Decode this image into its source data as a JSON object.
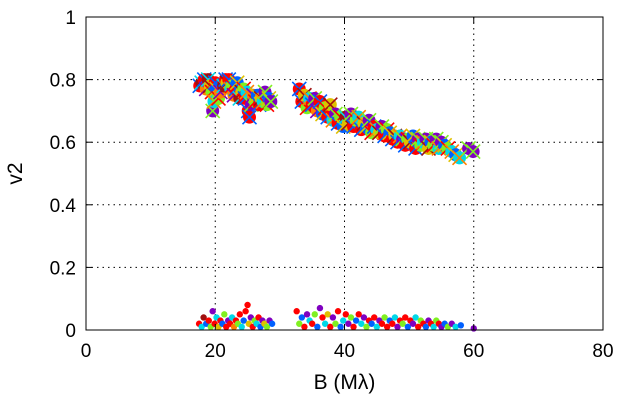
{
  "chart_data": {
    "type": "scatter",
    "title": "",
    "xlabel": "B (Mλ)",
    "ylabel": "v2",
    "xlim": [
      0,
      80
    ],
    "ylim": [
      0,
      1
    ],
    "xticks": [
      0,
      20,
      40,
      60,
      80
    ],
    "yticks": [
      0,
      0.2,
      0.4,
      0.6,
      0.8,
      1
    ],
    "grid": "dotted",
    "legend": "none",
    "colors": [
      "#8000c0",
      "#0060ff",
      "#00d8e8",
      "#80f020",
      "#e0c000",
      "#ff8000",
      "#ff0000",
      "#a01010"
    ],
    "series": [
      {
        "marker": "circle-with-x",
        "points": [
          [
            17.6,
            0.78,
            6
          ],
          [
            17.9,
            0.79,
            7
          ],
          [
            18.3,
            0.8,
            6
          ],
          [
            18.6,
            0.77,
            5
          ],
          [
            18.9,
            0.8,
            7
          ],
          [
            19.2,
            0.78,
            4
          ],
          [
            19.5,
            0.76,
            3
          ],
          [
            19.6,
            0.7,
            0
          ],
          [
            19.8,
            0.73,
            2
          ],
          [
            20.0,
            0.79,
            6
          ],
          [
            20.2,
            0.77,
            1
          ],
          [
            20.5,
            0.74,
            3
          ],
          [
            20.8,
            0.76,
            5
          ],
          [
            21.3,
            0.78,
            7
          ],
          [
            21.6,
            0.8,
            6
          ],
          [
            21.8,
            0.79,
            4
          ],
          [
            22.1,
            0.8,
            6
          ],
          [
            22.4,
            0.77,
            2
          ],
          [
            22.6,
            0.78,
            3
          ],
          [
            22.9,
            0.75,
            5
          ],
          [
            23.2,
            0.77,
            6
          ],
          [
            23.4,
            0.79,
            1
          ],
          [
            23.8,
            0.74,
            7
          ],
          [
            24.1,
            0.76,
            4
          ],
          [
            24.4,
            0.77,
            3
          ],
          [
            24.6,
            0.74,
            6
          ],
          [
            24.9,
            0.76,
            2
          ],
          [
            25.1,
            0.7,
            6
          ],
          [
            25.3,
            0.68,
            6
          ],
          [
            25.6,
            0.72,
            0
          ],
          [
            25.9,
            0.75,
            5
          ],
          [
            26.2,
            0.73,
            3
          ],
          [
            26.5,
            0.75,
            1
          ],
          [
            26.8,
            0.72,
            6
          ],
          [
            27.1,
            0.74,
            4
          ],
          [
            27.4,
            0.73,
            2
          ],
          [
            27.7,
            0.76,
            0
          ],
          [
            28.0,
            0.72,
            3
          ],
          [
            28.3,
            0.74,
            1
          ],
          [
            28.6,
            0.73,
            0
          ],
          [
            33.0,
            0.77,
            6
          ],
          [
            33.4,
            0.73,
            6
          ],
          [
            33.8,
            0.75,
            4
          ],
          [
            34.2,
            0.71,
            3
          ],
          [
            34.6,
            0.74,
            2
          ],
          [
            35.0,
            0.72,
            6
          ],
          [
            35.4,
            0.74,
            0
          ],
          [
            35.8,
            0.7,
            5
          ],
          [
            36.2,
            0.73,
            6
          ],
          [
            36.6,
            0.69,
            1
          ],
          [
            37.0,
            0.71,
            3
          ],
          [
            37.4,
            0.68,
            6
          ],
          [
            37.8,
            0.72,
            4
          ],
          [
            38.2,
            0.67,
            2
          ],
          [
            38.6,
            0.69,
            0
          ],
          [
            39.0,
            0.66,
            6
          ],
          [
            39.4,
            0.68,
            3
          ],
          [
            39.8,
            0.65,
            1
          ],
          [
            40.2,
            0.68,
            7
          ],
          [
            40.6,
            0.66,
            4
          ],
          [
            41.0,
            0.69,
            0
          ],
          [
            41.4,
            0.65,
            6
          ],
          [
            41.8,
            0.67,
            3
          ],
          [
            42.2,
            0.68,
            2
          ],
          [
            42.6,
            0.64,
            6
          ],
          [
            43.0,
            0.66,
            4
          ],
          [
            43.4,
            0.65,
            1
          ],
          [
            43.8,
            0.67,
            0
          ],
          [
            44.2,
            0.63,
            3
          ],
          [
            44.6,
            0.65,
            6
          ],
          [
            45.0,
            0.64,
            2
          ],
          [
            45.4,
            0.63,
            4
          ],
          [
            45.8,
            0.65,
            0
          ],
          [
            46.2,
            0.62,
            6
          ],
          [
            46.6,
            0.64,
            3
          ],
          [
            47.0,
            0.63,
            1
          ],
          [
            47.4,
            0.61,
            6
          ],
          [
            47.8,
            0.62,
            4
          ],
          [
            48.2,
            0.6,
            6
          ],
          [
            48.6,
            0.62,
            2
          ],
          [
            49.0,
            0.61,
            0
          ],
          [
            49.4,
            0.59,
            6
          ],
          [
            49.8,
            0.61,
            3
          ],
          [
            50.2,
            0.6,
            4
          ],
          [
            50.6,
            0.62,
            1
          ],
          [
            51.0,
            0.58,
            6
          ],
          [
            51.4,
            0.61,
            0
          ],
          [
            51.8,
            0.59,
            3
          ],
          [
            52.2,
            0.6,
            2
          ],
          [
            52.6,
            0.61,
            0
          ],
          [
            53.0,
            0.58,
            4
          ],
          [
            53.4,
            0.6,
            1
          ],
          [
            53.8,
            0.59,
            3
          ],
          [
            54.2,
            0.61,
            0
          ],
          [
            54.6,
            0.58,
            2
          ],
          [
            55.0,
            0.6,
            0
          ],
          [
            55.5,
            0.59,
            1
          ],
          [
            56.0,
            0.58,
            3
          ],
          [
            56.6,
            0.57,
            2
          ],
          [
            57.2,
            0.56,
            1
          ],
          [
            57.8,
            0.55,
            2
          ],
          [
            59.2,
            0.58,
            0
          ],
          [
            59.9,
            0.57,
            0
          ]
        ]
      },
      {
        "marker": "dot",
        "points": [
          [
            17.5,
            0.02,
            6
          ],
          [
            17.9,
            0.01,
            2
          ],
          [
            18.2,
            0.04,
            7
          ],
          [
            18.6,
            0.02,
            1
          ],
          [
            19.0,
            0.03,
            6
          ],
          [
            19.3,
            0.01,
            3
          ],
          [
            19.6,
            0.06,
            0
          ],
          [
            19.9,
            0.02,
            6
          ],
          [
            20.2,
            0.04,
            2
          ],
          [
            20.5,
            0.01,
            4
          ],
          [
            20.8,
            0.03,
            6
          ],
          [
            21.1,
            0.02,
            1
          ],
          [
            21.4,
            0.05,
            3
          ],
          [
            21.7,
            0.01,
            6
          ],
          [
            22.0,
            0.03,
            0
          ],
          [
            22.3,
            0.02,
            6
          ],
          [
            22.6,
            0.04,
            2
          ],
          [
            22.9,
            0.01,
            5
          ],
          [
            23.2,
            0.03,
            6
          ],
          [
            23.5,
            0.02,
            3
          ],
          [
            23.8,
            0.05,
            6
          ],
          [
            24.1,
            0.01,
            2
          ],
          [
            24.4,
            0.03,
            1
          ],
          [
            24.7,
            0.06,
            6
          ],
          [
            25.0,
            0.08,
            6
          ],
          [
            25.2,
            0.02,
            4
          ],
          [
            25.5,
            0.04,
            0
          ],
          [
            25.8,
            0.01,
            6
          ],
          [
            26.1,
            0.03,
            3
          ],
          [
            26.4,
            0.02,
            2
          ],
          [
            26.7,
            0.04,
            6
          ],
          [
            27.0,
            0.01,
            1
          ],
          [
            27.3,
            0.03,
            0
          ],
          [
            27.6,
            0.02,
            4
          ],
          [
            28.0,
            0.01,
            3
          ],
          [
            28.4,
            0.03,
            0
          ],
          [
            28.8,
            0.02,
            1
          ],
          [
            32.6,
            0.06,
            6
          ],
          [
            33.0,
            0.02,
            3
          ],
          [
            33.4,
            0.04,
            1
          ],
          [
            33.8,
            0.01,
            6
          ],
          [
            34.2,
            0.05,
            0
          ],
          [
            34.6,
            0.03,
            2
          ],
          [
            35.0,
            0.02,
            6
          ],
          [
            35.4,
            0.05,
            3
          ],
          [
            35.8,
            0.01,
            1
          ],
          [
            36.2,
            0.07,
            0
          ],
          [
            36.6,
            0.04,
            6
          ],
          [
            37.0,
            0.02,
            2
          ],
          [
            37.4,
            0.05,
            4
          ],
          [
            37.8,
            0.01,
            6
          ],
          [
            38.2,
            0.04,
            0
          ],
          [
            38.6,
            0.02,
            3
          ],
          [
            39.0,
            0.06,
            6
          ],
          [
            39.4,
            0.01,
            1
          ],
          [
            39.8,
            0.03,
            2
          ],
          [
            40.2,
            0.05,
            6
          ],
          [
            40.6,
            0.02,
            0
          ],
          [
            41.0,
            0.04,
            3
          ],
          [
            41.4,
            0.01,
            6
          ],
          [
            41.8,
            0.03,
            1
          ],
          [
            42.2,
            0.05,
            6
          ],
          [
            42.6,
            0.02,
            2
          ],
          [
            43.0,
            0.04,
            0
          ],
          [
            43.4,
            0.01,
            3
          ],
          [
            43.8,
            0.03,
            6
          ],
          [
            44.2,
            0.02,
            1
          ],
          [
            44.6,
            0.04,
            6
          ],
          [
            45.0,
            0.01,
            2
          ],
          [
            45.4,
            0.03,
            0
          ],
          [
            45.8,
            0.02,
            6
          ],
          [
            46.2,
            0.04,
            3
          ],
          [
            46.6,
            0.01,
            6
          ],
          [
            47.0,
            0.03,
            1
          ],
          [
            47.4,
            0.02,
            6
          ],
          [
            47.8,
            0.04,
            2
          ],
          [
            48.2,
            0.01,
            0
          ],
          [
            48.6,
            0.03,
            6
          ],
          [
            49.0,
            0.02,
            3
          ],
          [
            49.4,
            0.04,
            6
          ],
          [
            49.8,
            0.01,
            1
          ],
          [
            50.2,
            0.03,
            6
          ],
          [
            50.6,
            0.02,
            0
          ],
          [
            51.0,
            0.04,
            2
          ],
          [
            51.4,
            0.01,
            6
          ],
          [
            51.8,
            0.03,
            3
          ],
          [
            52.2,
            0.02,
            6
          ],
          [
            52.6,
            0.01,
            1
          ],
          [
            53.0,
            0.03,
            0
          ],
          [
            53.4,
            0.02,
            6
          ],
          [
            53.8,
            0.01,
            2
          ],
          [
            54.2,
            0.03,
            3
          ],
          [
            54.6,
            0.02,
            6
          ],
          [
            55.0,
            0.01,
            0
          ],
          [
            55.5,
            0.02,
            1
          ],
          [
            56.0,
            0.01,
            3
          ],
          [
            56.6,
            0.02,
            0
          ],
          [
            57.2,
            0.01,
            2
          ],
          [
            58.0,
            0.015,
            1
          ],
          [
            60.0,
            0.005,
            0
          ]
        ]
      }
    ]
  }
}
